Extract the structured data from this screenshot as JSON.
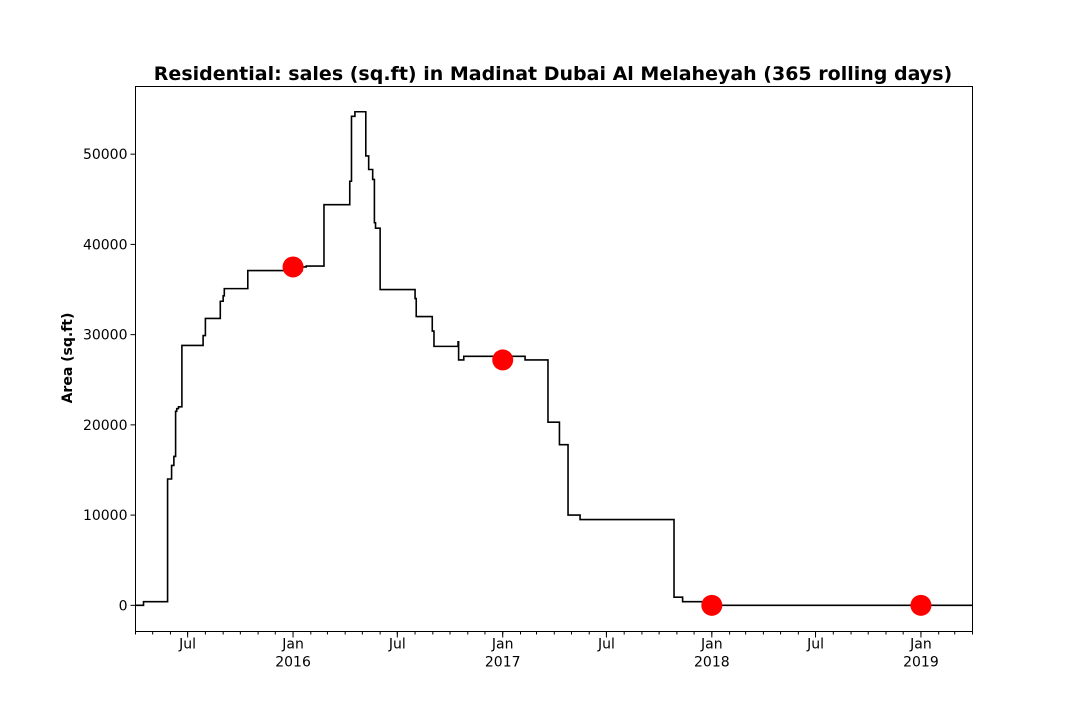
{
  "chart_data": {
    "type": "line",
    "title": "Residential: sales (sq.ft) in Madinat Dubai Al Melaheyah (365 rolling days)",
    "xlabel": "",
    "ylabel": "Area (sq.ft)",
    "xlim": [
      "2015-04-01",
      "2019-04-01"
    ],
    "ylim": [
      -2900,
      57500
    ],
    "grid": false,
    "y_ticks": [
      0,
      10000,
      20000,
      30000,
      40000,
      50000
    ],
    "y_tick_labels": [
      "0",
      "10000",
      "20000",
      "30000",
      "40000",
      "50000"
    ],
    "x_ticks": [
      {
        "date": "2015-07-01",
        "label": "Jul",
        "sublabel": ""
      },
      {
        "date": "2016-01-01",
        "label": "Jan",
        "sublabel": "2016"
      },
      {
        "date": "2016-07-01",
        "label": "Jul",
        "sublabel": ""
      },
      {
        "date": "2017-01-01",
        "label": "Jan",
        "sublabel": "2017"
      },
      {
        "date": "2017-07-01",
        "label": "Jul",
        "sublabel": ""
      },
      {
        "date": "2018-01-01",
        "label": "Jan",
        "sublabel": "2018"
      },
      {
        "date": "2018-07-01",
        "label": "Jul",
        "sublabel": ""
      },
      {
        "date": "2019-01-01",
        "label": "Jan",
        "sublabel": "2019"
      }
    ],
    "series": [
      {
        "color": "#000000",
        "step": true,
        "x": [
          "2015-04-01",
          "2015-04-15",
          "2015-05-27",
          "2015-05-29",
          "2015-06-03",
          "2015-06-07",
          "2015-06-10",
          "2015-06-12",
          "2015-06-15",
          "2015-06-21",
          "2015-07-28",
          "2015-08-01",
          "2015-08-27",
          "2015-09-01",
          "2015-09-03",
          "2015-10-14",
          "2016-01-17",
          "2016-01-24",
          "2016-02-24",
          "2016-03-10",
          "2016-04-09",
          "2016-04-12",
          "2016-04-16",
          "2016-04-18",
          "2016-04-24",
          "2016-05-07",
          "2016-05-09",
          "2016-05-12",
          "2016-05-16",
          "2016-05-19",
          "2016-05-22",
          "2016-05-24",
          "2016-06-01",
          "2016-06-22",
          "2016-08-01",
          "2016-08-03",
          "2016-08-18",
          "2016-08-31",
          "2016-09-03",
          "2016-10-15",
          "2016-10-16",
          "2016-10-25",
          "2016-10-31",
          "2017-02-09",
          "2017-03-21",
          "2017-04-10",
          "2017-04-14",
          "2017-04-25",
          "2017-05-16",
          "2017-10-27",
          "2017-11-11",
          "2017-12-31"
        ],
        "y": [
          0,
          400,
          14000,
          14000,
          15500,
          16500,
          21500,
          21800,
          22000,
          28800,
          29900,
          31800,
          33700,
          34300,
          35100,
          37100,
          37500,
          37600,
          44400,
          44400,
          47000,
          54200,
          54200,
          54700,
          54700,
          49800,
          49800,
          48300,
          48300,
          47200,
          42400,
          41800,
          35000,
          35000,
          34000,
          32000,
          32000,
          30400,
          28700,
          29200,
          27200,
          27600,
          27600,
          27200,
          20300,
          17800,
          17800,
          10000,
          9500,
          900,
          400,
          0
        ]
      }
    ],
    "markers": {
      "color": "#ff0000",
      "points": [
        {
          "x": "2016-01-01",
          "y": 37500
        },
        {
          "x": "2017-01-01",
          "y": 27200
        },
        {
          "x": "2018-01-01",
          "y": 0
        },
        {
          "x": "2019-01-01",
          "y": 0
        }
      ]
    }
  }
}
